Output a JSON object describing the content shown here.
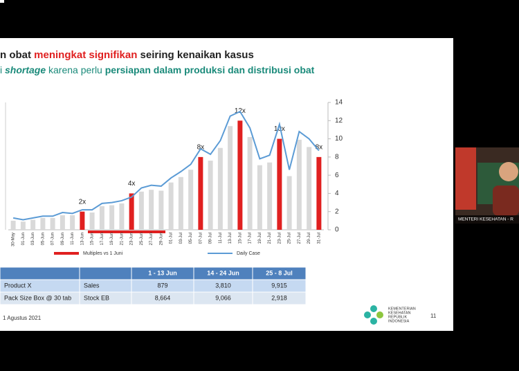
{
  "slide": {
    "title": [
      "n obat ",
      "meningkat signifikan",
      " seiring kenaikan kasus"
    ],
    "subtitle": [
      "i ",
      "shortage",
      " karena perlu ",
      "persiapan dalam produksi dan distribusi obat"
    ],
    "date": "1 Agustus 2021",
    "page": "11",
    "logo": [
      "KEMENTERIAN",
      "KESEHATAN",
      "REPUBLIK",
      "INDONESIA"
    ]
  },
  "chart_data": {
    "type": "combo",
    "categories": [
      "30-May",
      "01-Jun",
      "03-Jun",
      "05-Jun",
      "07-Jun",
      "09-Jun",
      "11-Jun",
      "13-Jun",
      "15-Jun",
      "17-Jun",
      "19-Jun",
      "21-Jun",
      "23-Jun",
      "25-Jun",
      "27-Jun",
      "29-Jun",
      "01-Jul",
      "03-Jul",
      "05-Jul",
      "07-Jul",
      "09-Jul",
      "11-Jul",
      "13-Jul",
      "15-Jul",
      "17-Jul",
      "19-Jul",
      "21-Jul",
      "23-Jul",
      "25-Jul",
      "27-Jul",
      "29-Jul",
      "31-Jul"
    ],
    "series": [
      {
        "color": "#d9d9d9",
        "type": "bar",
        "values": [
          1.0,
          0.9,
          1.1,
          1.3,
          1.3,
          1.6,
          1.6,
          null,
          1.9,
          2.6,
          2.7,
          2.9,
          null,
          4.2,
          4.4,
          4.3,
          5.2,
          5.8,
          6.6,
          null,
          7.6,
          9.0,
          11.4,
          null,
          10.2,
          7.1,
          7.4,
          null,
          5.9,
          9.9,
          9.1,
          null
        ]
      },
      {
        "name": "Multiples vs 1 Juni",
        "color": "#e02020",
        "type": "bar",
        "values": [
          null,
          null,
          null,
          null,
          null,
          null,
          null,
          2,
          null,
          null,
          null,
          null,
          4,
          null,
          null,
          null,
          null,
          null,
          null,
          8,
          null,
          null,
          null,
          12,
          null,
          null,
          null,
          10,
          null,
          null,
          null,
          8
        ],
        "value_labels": [
          null,
          null,
          null,
          null,
          null,
          null,
          null,
          "2x",
          null,
          null,
          null,
          null,
          "4x",
          null,
          null,
          null,
          null,
          null,
          null,
          "8x",
          null,
          null,
          null,
          "12x",
          null,
          null,
          null,
          "10x",
          null,
          null,
          null,
          "8x"
        ]
      },
      {
        "name": "Daily Case",
        "color": "#5b9bd5",
        "type": "line",
        "values": [
          1.3,
          1.1,
          1.3,
          1.5,
          1.5,
          1.9,
          1.8,
          2.2,
          2.2,
          2.9,
          3.0,
          3.2,
          3.6,
          4.6,
          4.9,
          4.8,
          5.7,
          6.4,
          7.2,
          8.9,
          8.3,
          9.8,
          12.5,
          13.0,
          11.2,
          7.8,
          8.2,
          11.6,
          6.6,
          10.8,
          10.0,
          8.7
        ]
      }
    ],
    "ylim": [
      0,
      14
    ],
    "yticks": [
      0,
      2,
      4,
      6,
      8,
      10,
      12,
      14
    ]
  },
  "table": {
    "header": [
      "",
      "",
      "1 - 13 Jun",
      "14 - 24 Jun",
      "25 - 8 Jul"
    ],
    "rows": [
      [
        "Product X",
        "Sales",
        "879",
        "3,810",
        "9,915"
      ],
      [
        "Pack Size Box @ 30 tab",
        "Stock EB",
        "8,664",
        "9,066",
        "2,918"
      ]
    ]
  },
  "video": {
    "label": "MENTERI KESEHATAN - R"
  }
}
